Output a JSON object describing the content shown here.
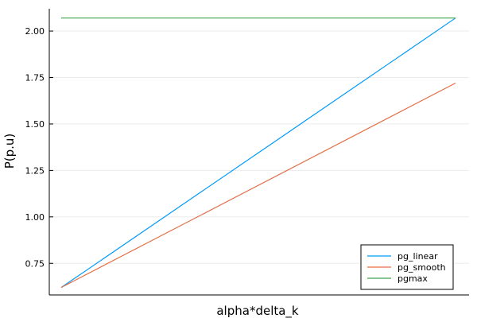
{
  "chart_data": {
    "type": "line",
    "title": "",
    "xlabel": "alpha*delta_k",
    "ylabel": "P(p.u)",
    "xlim": [
      0,
      1
    ],
    "ylim": [
      0.58,
      2.12
    ],
    "grid": true,
    "legend_position": "bottom-right",
    "x_ticks": [],
    "y_ticks": [
      0.75,
      1.0,
      1.25,
      1.5,
      1.75,
      2.0
    ],
    "y_tick_labels": [
      "0.75",
      "1.00",
      "1.25",
      "1.50",
      "1.75",
      "2.00"
    ],
    "series": [
      {
        "name": "pg_linear",
        "color": "#009AFA",
        "x": [
          0,
          1
        ],
        "values": [
          0.62,
          2.07
        ]
      },
      {
        "name": "pg_smooth",
        "color": "#E36F47",
        "x": [
          0,
          1
        ],
        "values": [
          0.62,
          1.72
        ]
      },
      {
        "name": "pgmax",
        "color": "#3EA44E",
        "x": [
          0,
          1
        ],
        "values": [
          2.07,
          2.07
        ]
      }
    ]
  }
}
